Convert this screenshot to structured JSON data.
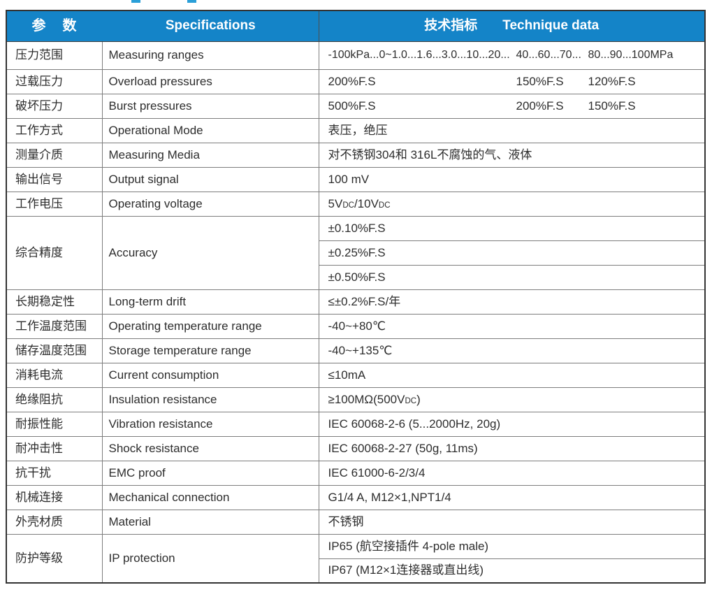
{
  "header": {
    "param_zh": "参　数",
    "spec_en": "Specifications",
    "tech_zh": "技术指标",
    "tech_en": "Technique data"
  },
  "colors": {
    "header_bg": "#1484c8",
    "header_text": "#ffffff",
    "grid_line": "#7d7d7d",
    "outer_border": "#333333",
    "body_text": "#2d2d2d",
    "artifact_blue": "#2a9fd8"
  },
  "rows": {
    "measuring": {
      "cn": "压力范围",
      "en": "Measuring ranges",
      "segments": [
        "-100kPa...0~1.0...1.6...3.0...10...20...",
        "40...60...70...",
        "80...90...100MPa"
      ]
    },
    "overload": {
      "cn": "过载压力",
      "en": "Overload pressures",
      "segments": [
        "200%F.S",
        "150%F.S",
        "120%F.S"
      ]
    },
    "burst": {
      "cn": "破坏压力",
      "en": "Burst pressures",
      "segments": [
        "500%F.S",
        "200%F.S",
        "150%F.S"
      ]
    },
    "mode": {
      "cn": "工作方式",
      "en": "Operational Mode",
      "value": "表压，绝压"
    },
    "media": {
      "cn": "测量介质",
      "en": "Measuring Media",
      "value": "对不锈钢304和 316L不腐蚀的气、液体"
    },
    "output": {
      "cn": "输出信号",
      "en": "Output signal",
      "value": "100 mV"
    },
    "voltage": {
      "cn": "工作电压",
      "en": "Operating voltage",
      "parts": [
        "5V",
        "DC",
        "/10V",
        "DC"
      ]
    },
    "accuracy": {
      "cn": "综合精度",
      "en": "Accuracy",
      "values": [
        "±0.10%F.S",
        "±0.25%F.S",
        "±0.50%F.S"
      ]
    },
    "drift": {
      "cn": "长期稳定性",
      "en": "Long-term drift",
      "value": "≤±0.2%F.S/年"
    },
    "op_temp": {
      "cn": "工作温度范围",
      "en": "Operating temperature range",
      "value": "-40~+80℃"
    },
    "st_temp": {
      "cn": "储存温度范围",
      "en": "Storage temperature range",
      "value": "-40~+135℃"
    },
    "current": {
      "cn": "消耗电流",
      "en": "Current consumption",
      "value": "≤10mA"
    },
    "insulation": {
      "cn": "绝缘阻抗",
      "en": "Insulation resistance",
      "parts": [
        "≥100MΩ(500V",
        "DC",
        ")"
      ]
    },
    "vibration": {
      "cn": "耐振性能",
      "en": "Vibration resistance",
      "value": "IEC 60068-2-6 (5...2000Hz, 20g)"
    },
    "shock": {
      "cn": "耐冲击性",
      "en": "Shock resistance",
      "value": "IEC 60068-2-27 (50g, 11ms)"
    },
    "emc": {
      "cn": "抗干扰",
      "en": "EMC proof",
      "value": "IEC 61000-6-2/3/4"
    },
    "mechanical": {
      "cn": "机械连接",
      "en": "Mechanical connection",
      "value": "G1/4 A, M12×1,NPT1/4"
    },
    "material": {
      "cn": "外壳材质",
      "en": "Material",
      "value": "不锈钢"
    },
    "ip": {
      "cn": "防护等级",
      "en": "IP protection",
      "values": [
        "IP65 (航空接插件 4-pole male)",
        "IP67 (M12×1连接器或直出线)"
      ]
    }
  }
}
